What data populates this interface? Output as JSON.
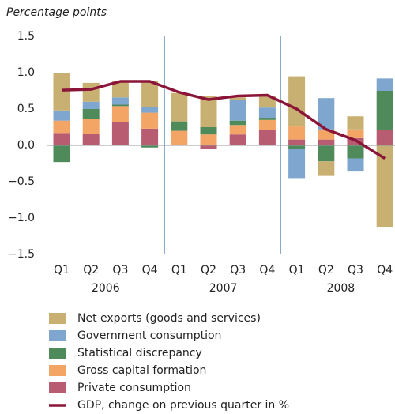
{
  "chart_data": {
    "type": "bar",
    "stacked": true,
    "y_label": "Percentage points",
    "categories": [
      "Q1",
      "Q2",
      "Q3",
      "Q4",
      "Q1",
      "Q2",
      "Q3",
      "Q4",
      "Q1",
      "Q2",
      "Q3",
      "Q4"
    ],
    "groups": [
      {
        "label": "2006",
        "size": 4
      },
      {
        "label": "2007",
        "size": 4
      },
      {
        "label": "2008",
        "size": 4
      }
    ],
    "ylim": [
      -1.5,
      1.5
    ],
    "yticks": [
      {
        "value": 1.5,
        "label": "1.5"
      },
      {
        "value": 1,
        "label": "1.0"
      },
      {
        "value": 0.5,
        "label": "0.5"
      },
      {
        "value": 0,
        "label": "0.0"
      },
      {
        "value": -0.5,
        "label": "−0.5"
      },
      {
        "value": -1,
        "label": "−1.0"
      },
      {
        "value": -1.5,
        "label": "−1.5"
      }
    ],
    "series": [
      {
        "name": "Private consumption",
        "color": "#b85c72",
        "values": [
          0.17,
          0.16,
          0.32,
          0.23,
          0.0,
          -0.05,
          0.15,
          0.21,
          0.08,
          0.08,
          0.1,
          0.21
        ]
      },
      {
        "name": "Gross capital formation",
        "color": "#f3a566",
        "values": [
          0.17,
          0.2,
          0.22,
          0.22,
          0.2,
          0.15,
          0.13,
          0.14,
          0.18,
          0.14,
          0.12,
          0.0
        ]
      },
      {
        "name": "Statistical discrepancy",
        "color": "#4e8a5a",
        "values": [
          -0.23,
          0.14,
          0.02,
          -0.03,
          0.13,
          0.1,
          0.06,
          0.03,
          -0.05,
          -0.22,
          -0.18,
          0.54
        ]
      },
      {
        "name": "Government consumption",
        "color": "#7ea6cf",
        "values": [
          0.14,
          0.1,
          0.1,
          0.08,
          0.0,
          0.0,
          0.28,
          0.14,
          -0.4,
          0.43,
          -0.18,
          0.17
        ]
      },
      {
        "name": "Net exports (goods and services)",
        "color": "#c8b073",
        "values": [
          0.52,
          0.26,
          0.22,
          0.35,
          0.39,
          0.43,
          0.04,
          0.16,
          0.69,
          -0.2,
          0.18,
          -1.12
        ]
      }
    ],
    "line_series": {
      "name": "GDP, change on previous quarter in %",
      "color": "#8b1538",
      "values": [
        0.76,
        0.77,
        0.88,
        0.88,
        0.73,
        0.63,
        0.68,
        0.69,
        0.5,
        0.22,
        0.07,
        -0.18
      ]
    }
  }
}
